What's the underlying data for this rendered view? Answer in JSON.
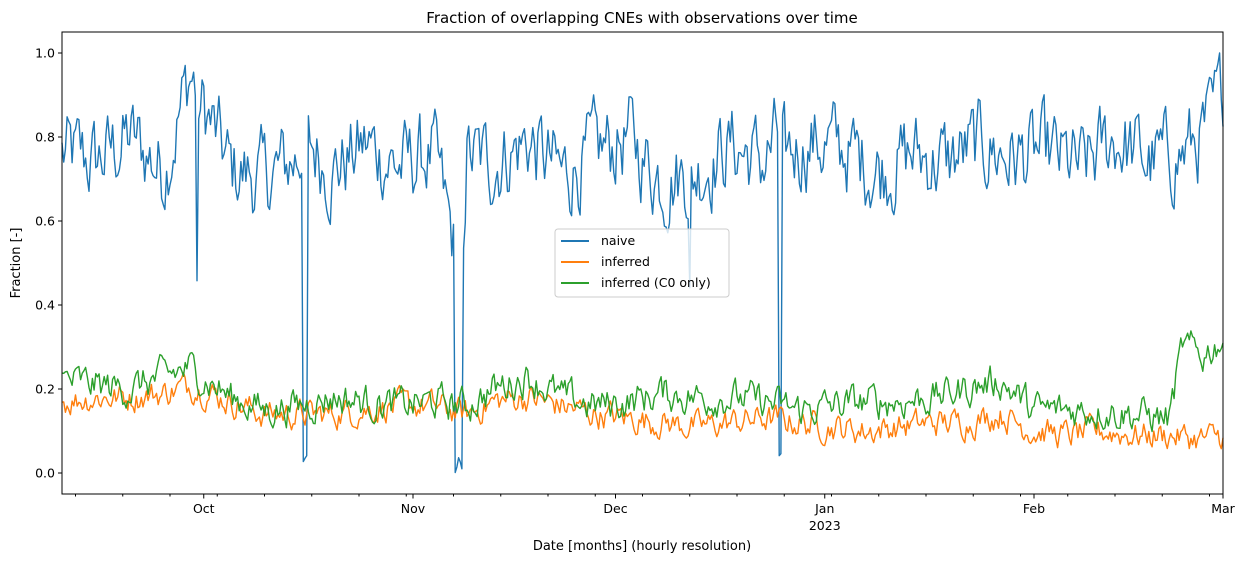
{
  "chart_data": {
    "type": "line",
    "title": "Fraction of overlapping CNEs with observations over time",
    "xlabel": "Date [months] (hourly resolution)",
    "ylabel": "Fraction [-]",
    "x_start": "2022-09-10",
    "x_end": "2023-03-01",
    "ylim": [
      -0.05,
      1.05
    ],
    "yticks": [
      "0.0",
      "0.2",
      "0.4",
      "0.6",
      "0.8",
      "1.0"
    ],
    "xticks": [
      {
        "date": "2022-10-01",
        "label": "Oct",
        "sublabel": ""
      },
      {
        "date": "2022-11-01",
        "label": "Nov",
        "sublabel": ""
      },
      {
        "date": "2022-12-01",
        "label": "Dec",
        "sublabel": ""
      },
      {
        "date": "2023-01-01",
        "label": "Jan",
        "sublabel": "2023"
      },
      {
        "date": "2023-02-01",
        "label": "Feb",
        "sublabel": ""
      },
      {
        "date": "2023-03-01",
        "label": "Mar",
        "sublabel": ""
      }
    ],
    "grid": false,
    "legend_position": "center",
    "series": [
      {
        "name": "naive",
        "color": "#1f77b4",
        "x": [
          "2022-09-10",
          "2022-09-15",
          "2022-09-20",
          "2022-09-25",
          "2022-09-29",
          "2022-10-05",
          "2022-10-10",
          "2022-10-15",
          "2022-10-16",
          "2022-10-20",
          "2022-10-25",
          "2022-10-30",
          "2022-11-04",
          "2022-11-07",
          "2022-11-08",
          "2022-11-09",
          "2022-11-13",
          "2022-11-18",
          "2022-11-23",
          "2022-11-28",
          "2022-12-03",
          "2022-12-06",
          "2022-12-08",
          "2022-12-13",
          "2022-12-18",
          "2022-12-23",
          "2022-12-25",
          "2022-12-26",
          "2022-12-30",
          "2023-01-04",
          "2023-01-09",
          "2023-01-14",
          "2023-01-19",
          "2023-01-24",
          "2023-01-29",
          "2023-02-03",
          "2023-02-08",
          "2023-02-13",
          "2023-02-18",
          "2023-02-23",
          "2023-02-27",
          "2023-03-01"
        ],
        "y": [
          0.76,
          0.74,
          0.8,
          0.72,
          0.95,
          0.72,
          0.7,
          0.75,
          0.8,
          0.72,
          0.78,
          0.73,
          0.76,
          0.55,
          0.3,
          0.75,
          0.74,
          0.79,
          0.71,
          0.76,
          0.8,
          0.73,
          0.7,
          0.72,
          0.78,
          0.74,
          0.8,
          0.76,
          0.79,
          0.77,
          0.72,
          0.76,
          0.74,
          0.78,
          0.75,
          0.76,
          0.72,
          0.8,
          0.74,
          0.76,
          0.82,
          0.92
        ]
      },
      {
        "name": "inferred",
        "color": "#ff7f0e",
        "x": [
          "2022-09-10",
          "2022-09-15",
          "2022-09-20",
          "2022-09-25",
          "2022-09-29",
          "2022-10-05",
          "2022-10-10",
          "2022-10-15",
          "2022-10-20",
          "2022-10-25",
          "2022-10-30",
          "2022-11-04",
          "2022-11-09",
          "2022-11-13",
          "2022-11-18",
          "2022-11-23",
          "2022-11-28",
          "2022-12-03",
          "2022-12-08",
          "2022-12-13",
          "2022-12-18",
          "2022-12-23",
          "2022-12-28",
          "2023-01-02",
          "2023-01-07",
          "2023-01-12",
          "2023-01-17",
          "2023-01-22",
          "2023-01-27",
          "2023-02-01",
          "2023-02-06",
          "2023-02-11",
          "2023-02-16",
          "2023-02-21",
          "2023-02-26",
          "2023-03-01"
        ],
        "y": [
          0.17,
          0.18,
          0.18,
          0.19,
          0.21,
          0.17,
          0.14,
          0.14,
          0.14,
          0.15,
          0.16,
          0.16,
          0.14,
          0.17,
          0.18,
          0.16,
          0.14,
          0.13,
          0.12,
          0.11,
          0.12,
          0.13,
          0.12,
          0.11,
          0.1,
          0.11,
          0.12,
          0.12,
          0.14,
          0.1,
          0.09,
          0.1,
          0.09,
          0.09,
          0.08,
          0.09
        ]
      },
      {
        "name": "inferred (C0 only)",
        "color": "#2ca02c",
        "x": [
          "2022-09-10",
          "2022-09-15",
          "2022-09-20",
          "2022-09-25",
          "2022-09-29",
          "2022-10-05",
          "2022-10-10",
          "2022-10-15",
          "2022-10-20",
          "2022-10-25",
          "2022-10-30",
          "2022-11-04",
          "2022-11-09",
          "2022-11-13",
          "2022-11-18",
          "2022-11-23",
          "2022-11-28",
          "2022-12-03",
          "2022-12-08",
          "2022-12-13",
          "2022-12-18",
          "2022-12-23",
          "2022-12-28",
          "2023-01-02",
          "2023-01-07",
          "2023-01-12",
          "2023-01-17",
          "2023-01-22",
          "2023-01-27",
          "2023-02-01",
          "2023-02-06",
          "2023-02-11",
          "2023-02-16",
          "2023-02-21",
          "2023-02-23",
          "2023-02-26",
          "2023-03-01"
        ],
        "y": [
          0.22,
          0.21,
          0.2,
          0.23,
          0.25,
          0.18,
          0.15,
          0.16,
          0.18,
          0.17,
          0.16,
          0.17,
          0.16,
          0.2,
          0.23,
          0.18,
          0.16,
          0.17,
          0.19,
          0.18,
          0.18,
          0.17,
          0.15,
          0.16,
          0.17,
          0.17,
          0.18,
          0.2,
          0.22,
          0.15,
          0.15,
          0.15,
          0.14,
          0.13,
          0.3,
          0.28,
          0.32
        ]
      }
    ]
  }
}
